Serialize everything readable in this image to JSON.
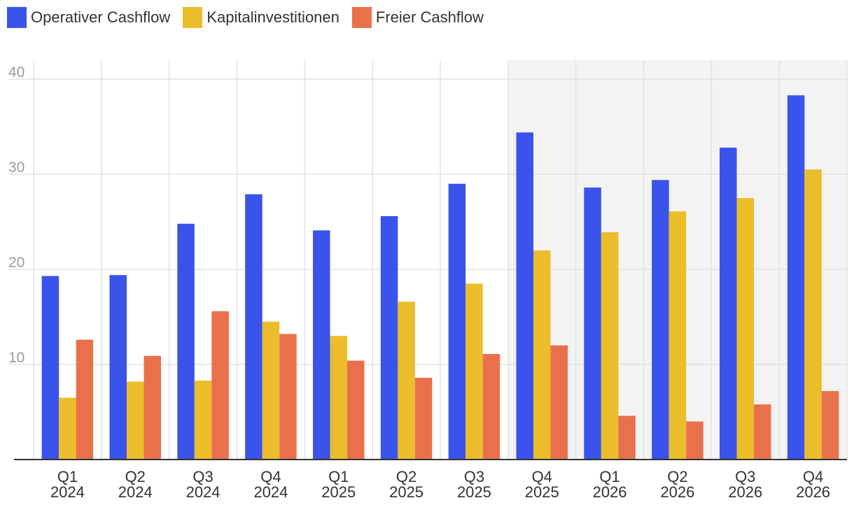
{
  "chart_data": {
    "type": "bar",
    "title": "",
    "xlabel": "",
    "ylabel": "",
    "ylim": [
      0,
      42
    ],
    "yticks": [
      10,
      20,
      30,
      40
    ],
    "grid": true,
    "legend_position": "top-left",
    "forecast_shaded_from_index": 7,
    "categories": [
      [
        "Q1",
        "2024"
      ],
      [
        "Q2",
        "2024"
      ],
      [
        "Q3",
        "2024"
      ],
      [
        "Q4",
        "2024"
      ],
      [
        "Q1",
        "2025"
      ],
      [
        "Q2",
        "2025"
      ],
      [
        "Q3",
        "2025"
      ],
      [
        "Q4",
        "2025"
      ],
      [
        "Q1",
        "2026"
      ],
      [
        "Q2",
        "2026"
      ],
      [
        "Q3",
        "2026"
      ],
      [
        "Q4",
        "2026"
      ]
    ],
    "series": [
      {
        "name": "Operativer Cashflow",
        "color": "#3a53ea",
        "values": [
          19.3,
          19.4,
          24.8,
          27.9,
          24.1,
          25.6,
          29.0,
          34.4,
          28.6,
          29.4,
          32.8,
          38.3
        ]
      },
      {
        "name": "Kapitalinvestitionen",
        "color": "#ebbd2a",
        "values": [
          6.5,
          8.2,
          8.3,
          14.5,
          13.0,
          16.6,
          18.5,
          22.0,
          23.9,
          26.1,
          27.5,
          30.5
        ]
      },
      {
        "name": "Freier Cashflow",
        "color": "#e8714c",
        "values": [
          12.6,
          10.9,
          15.6,
          13.2,
          10.4,
          8.6,
          11.1,
          12.0,
          4.6,
          4.0,
          5.8,
          7.2
        ]
      }
    ]
  }
}
